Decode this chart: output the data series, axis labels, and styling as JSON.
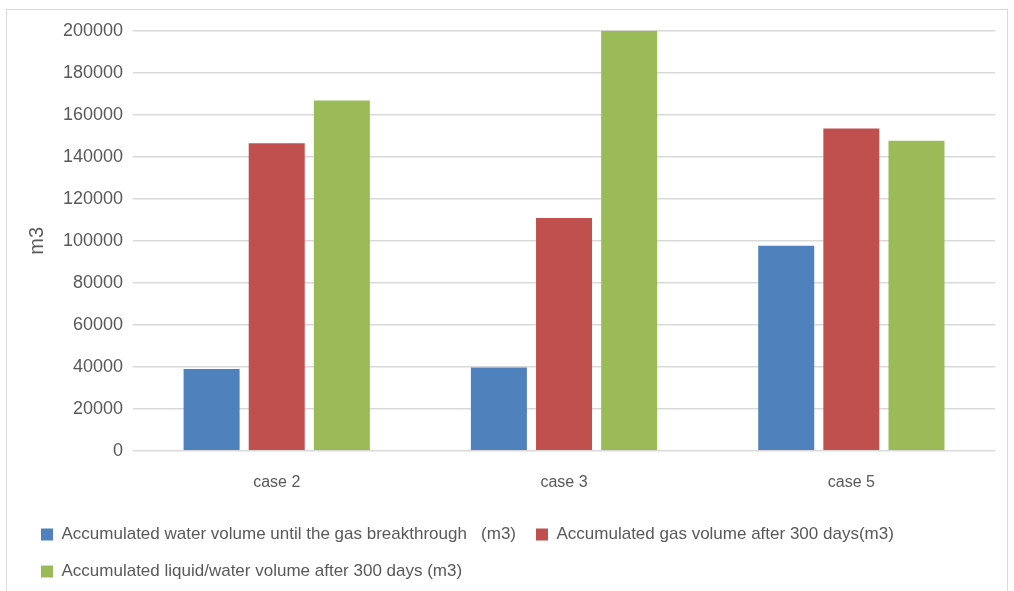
{
  "chart_data": {
    "type": "bar",
    "ylabel": "m3",
    "categories": [
      "case 2",
      "case 3",
      "case 5"
    ],
    "series": [
      {
        "name": "Accumulated water volume until the gas breakthrough   (m3)",
        "color": "#4f81bd",
        "values": [
          39000,
          39700,
          97700
        ]
      },
      {
        "name": "Accumulated gas volume after 300 days(m3)",
        "color": "#c0504d",
        "values": [
          146500,
          110800,
          153500
        ]
      },
      {
        "name": "Accumulated liquid/water volume after 300 days (m3)",
        "color": "#9bbb59",
        "values": [
          166800,
          200000,
          147700
        ]
      }
    ],
    "ylim": [
      0,
      200000
    ],
    "yticks": [
      0,
      20000,
      40000,
      60000,
      80000,
      100000,
      120000,
      140000,
      160000,
      180000,
      200000
    ],
    "grid": "y",
    "legend": "bottom"
  }
}
